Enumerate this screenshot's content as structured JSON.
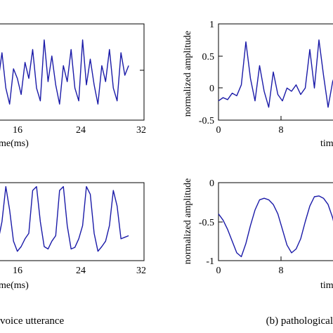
{
  "captions": {
    "left": "voice utterance",
    "right": "(b) pathological"
  },
  "chart_data": [
    {
      "id": "left-top",
      "type": "line",
      "xlabel": "me(ms)",
      "x_ticks": [
        "16",
        "24",
        "32"
      ],
      "xlim": [
        10.5,
        32
      ],
      "ylim": [
        -0.5,
        1
      ],
      "series": [
        {
          "color": "#1a1aa8",
          "x": [
            10.5,
            11,
            11.5,
            12,
            12.5,
            13,
            13.5,
            14,
            14.5,
            15,
            15.5,
            16,
            16.5,
            17,
            17.5,
            18,
            18.5,
            19,
            19.5,
            20,
            20.5,
            21,
            21.5,
            22,
            22.5,
            23,
            23.5,
            24,
            24.5,
            25,
            25.5,
            26,
            26.5,
            27,
            27.5,
            28,
            28.5,
            29,
            29.5,
            30
          ],
          "y": [
            0.35,
            0.55,
            0.15,
            -0.05,
            0.25,
            0.1,
            0.55,
            0.0,
            -0.25,
            0.3,
            0.15,
            -0.1,
            0.4,
            0.15,
            0.6,
            0.0,
            -0.2,
            0.75,
            0.1,
            0.5,
            0.05,
            -0.25,
            0.35,
            0.1,
            0.6,
            0.0,
            -0.2,
            0.75,
            0.05,
            0.45,
            0.05,
            -0.25,
            0.35,
            0.1,
            0.6,
            0.0,
            -0.2,
            0.55,
            0.2,
            0.35
          ]
        }
      ]
    },
    {
      "id": "right-top",
      "type": "line",
      "xlabel": "tim",
      "ylabel": "normalized amplitude",
      "y_ticks": [
        "1",
        "0.5",
        "0",
        "-0.5"
      ],
      "x_ticks": [
        "0",
        "8"
      ],
      "xlim": [
        0,
        13
      ],
      "ylim": [
        -0.5,
        1
      ],
      "series": [
        {
          "color": "#1a1aa8",
          "x": [
            0,
            0.5,
            1,
            1.5,
            2,
            2.5,
            3,
            3.5,
            4,
            4.5,
            5,
            5.5,
            6,
            6.5,
            7,
            7.5,
            8,
            8.5,
            9,
            9.5,
            10,
            10.5,
            11,
            11.5,
            12,
            12.5,
            13
          ],
          "y": [
            -0.2,
            -0.15,
            -0.18,
            -0.08,
            -0.12,
            0.05,
            0.72,
            0.15,
            -0.2,
            0.35,
            -0.05,
            -0.3,
            0.25,
            -0.1,
            -0.2,
            0.0,
            -0.05,
            0.05,
            -0.1,
            0.0,
            0.6,
            0.0,
            0.75,
            0.2,
            -0.3,
            0.1,
            0.3
          ]
        }
      ]
    },
    {
      "id": "left-bottom",
      "type": "line",
      "xlabel": "me(ms)",
      "x_ticks": [
        "16",
        "24",
        "32"
      ],
      "xlim": [
        10.5,
        32
      ],
      "ylim": [
        -1,
        0
      ],
      "series": [
        {
          "color": "#1a1aa8",
          "x": [
            10.5,
            11,
            11.5,
            12,
            12.5,
            13,
            13.5,
            14,
            14.5,
            15,
            15.5,
            16,
            16.5,
            17,
            17.5,
            18,
            18.5,
            19,
            19.5,
            20,
            20.5,
            21,
            21.5,
            22,
            22.5,
            23,
            23.5,
            24,
            24.5,
            25,
            25.5,
            26,
            26.5,
            27,
            27.5,
            28,
            28.5,
            29,
            29.5,
            30
          ],
          "y": [
            -0.35,
            -0.05,
            -0.4,
            -0.85,
            -0.8,
            -0.75,
            -0.5,
            -0.05,
            -0.35,
            -0.75,
            -0.88,
            -0.82,
            -0.72,
            -0.65,
            -0.1,
            -0.05,
            -0.5,
            -0.82,
            -0.85,
            -0.75,
            -0.68,
            -0.1,
            -0.05,
            -0.55,
            -0.85,
            -0.83,
            -0.72,
            -0.55,
            -0.05,
            -0.15,
            -0.65,
            -0.88,
            -0.82,
            -0.75,
            -0.55,
            -0.1,
            -0.3,
            -0.72,
            -0.7,
            -0.68
          ]
        }
      ]
    },
    {
      "id": "right-bottom",
      "type": "line",
      "xlabel": "tim",
      "ylabel": "normalized amplitude",
      "y_ticks": [
        "0",
        "-0.5",
        "-1"
      ],
      "x_ticks": [
        "0",
        "8"
      ],
      "xlim": [
        0,
        13
      ],
      "ylim": [
        -1,
        0
      ],
      "series": [
        {
          "color": "#1a1aa8",
          "x": [
            0,
            0.5,
            1,
            1.5,
            2,
            2.5,
            3,
            3.5,
            4,
            4.5,
            5,
            5.5,
            6,
            6.5,
            7,
            7.5,
            8,
            8.5,
            9,
            9.5,
            10,
            10.5,
            11,
            11.5,
            12,
            12.5,
            13
          ],
          "y": [
            -0.4,
            -0.48,
            -0.6,
            -0.75,
            -0.9,
            -0.95,
            -0.78,
            -0.55,
            -0.35,
            -0.22,
            -0.2,
            -0.22,
            -0.28,
            -0.4,
            -0.6,
            -0.8,
            -0.9,
            -0.85,
            -0.72,
            -0.5,
            -0.3,
            -0.18,
            -0.17,
            -0.2,
            -0.28,
            -0.45,
            -0.7
          ]
        }
      ]
    }
  ]
}
